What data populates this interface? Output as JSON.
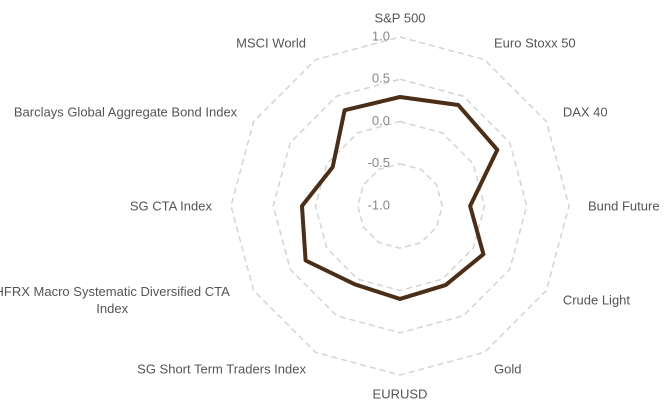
{
  "chart_data": {
    "type": "radar",
    "categories": [
      "S&P 500",
      "Euro Stoxx 50",
      "DAX 40",
      "Bund Future",
      "Crude Light",
      "Gold",
      "EURUSD",
      "SG Short Term Traders Index",
      "HFRX Macro Systematic Diversified CTA Index",
      "SG CTA Index",
      "Barclays Global Aggregate Bond Index",
      "MSCI World"
    ],
    "series": [
      {
        "color": "#4a2e17",
        "values": [
          0.29,
          0.38,
          0.33,
          -0.17,
          0.14,
          0.08,
          0.1,
          0.07,
          0.29,
          0.16,
          -0.08,
          0.31
        ]
      }
    ],
    "rlim": [
      -1,
      1
    ],
    "rticks": [
      {
        "value": -1,
        "label": "-1.0"
      },
      {
        "value": -0.5,
        "label": "-0.5"
      },
      {
        "value": 0,
        "label": "0.0"
      },
      {
        "value": 0.5,
        "label": "0.5"
      },
      {
        "value": 1,
        "label": "1.0"
      }
    ],
    "grid": true
  }
}
